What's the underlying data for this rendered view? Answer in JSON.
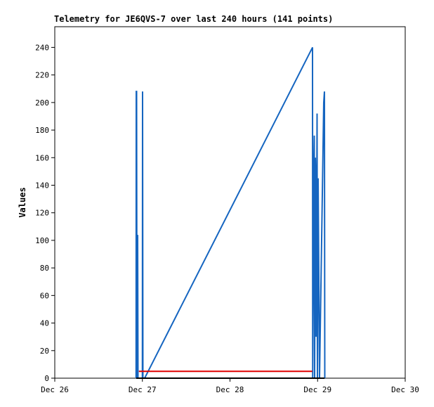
{
  "chart_data": {
    "type": "line",
    "title": "Telemetry for JE6QVS-7 over last 240 hours (141 points)",
    "y_label": "Values",
    "xlim": [
      0,
      4
    ],
    "xticks": [
      {
        "value": 0,
        "label": "Dec 26"
      },
      {
        "value": 1,
        "label": "Dec 27"
      },
      {
        "value": 2,
        "label": "Dec 28"
      },
      {
        "value": 3,
        "label": "Dec 29"
      },
      {
        "value": 4,
        "label": "Dec 30"
      }
    ],
    "ylim": [
      0,
      255
    ],
    "yticks": [
      0,
      20,
      40,
      60,
      80,
      100,
      120,
      140,
      160,
      180,
      200,
      220,
      240
    ],
    "grid": false,
    "series": [
      {
        "color": "#1565c0",
        "x": [
          0.928,
          0.93,
          0.934,
          0.938,
          0.946,
          0.95,
          1.0,
          1.002,
          1.006,
          1.026,
          2.942,
          2.944,
          2.958,
          2.962,
          2.966,
          2.974,
          2.978,
          2.982,
          2.99,
          2.994,
          2.998,
          3.006,
          3.022,
          3.07,
          3.078,
          3.082
        ],
        "values": [
          0,
          208,
          208,
          0,
          104,
          0,
          0,
          208,
          0,
          0,
          240,
          0,
          160,
          176,
          0,
          160,
          145,
          30,
          128,
          192,
          0,
          145,
          0,
          200,
          208,
          0
        ]
      },
      {
        "color": "#e00000",
        "x": [
          0.96,
          2.94
        ],
        "values": [
          5,
          5
        ]
      },
      {
        "color": "#000000",
        "x": [
          0.93,
          3.08
        ],
        "values": [
          0,
          0
        ]
      }
    ]
  }
}
